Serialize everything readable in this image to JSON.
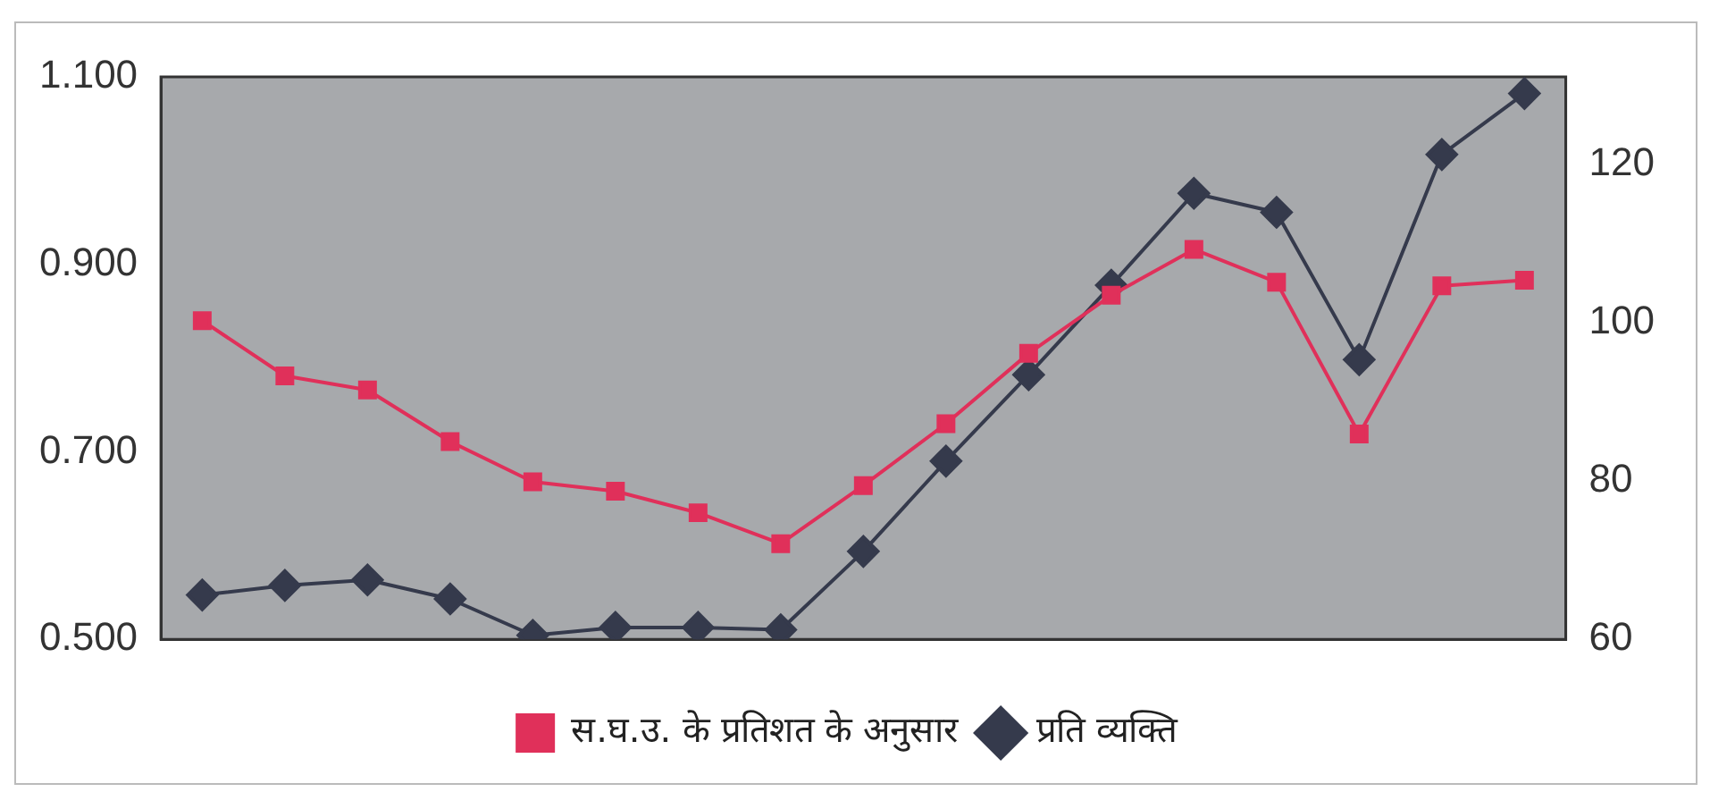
{
  "chart_data": {
    "type": "line",
    "categories": [
      null,
      null,
      null,
      null,
      null,
      null,
      null,
      null,
      null,
      null,
      null,
      null,
      null,
      null,
      null,
      null,
      null
    ],
    "series": [
      {
        "name": "स.घ.उ. के प्रतिशत के अनुसार",
        "color": "#e0305a",
        "marker": "square",
        "values": [
          0.84,
          0.781,
          0.766,
          0.711,
          0.668,
          0.658,
          0.635,
          0.602,
          0.664,
          0.73,
          0.805,
          0.867,
          0.916,
          0.881,
          0.719,
          0.877,
          0.883
        ]
      },
      {
        "name": "प्रति व्यक्ति",
        "color": "#353a4c",
        "marker": "diamond",
        "axis": "y2",
        "values": [
          65.6,
          66.8,
          67.5,
          65.1,
          60.5,
          61.5,
          61.5,
          61.2,
          71.1,
          82.5,
          93.4,
          104.7,
          116.3,
          113.9,
          95.3,
          121.2,
          128.9
        ]
      }
    ],
    "ylim": [
      0.5,
      1.1
    ],
    "yticks": [
      {
        "value": 0.5,
        "label": "0.500"
      },
      {
        "value": 0.7,
        "label": "0.700"
      },
      {
        "value": 0.9,
        "label": "0.900"
      },
      {
        "value": 1.1,
        "label": "1.100"
      }
    ],
    "y2lim": [
      60,
      131
    ],
    "y2ticks": [
      60,
      80,
      100,
      120
    ],
    "grid": false,
    "legend": "bottom",
    "line_style": "solid"
  }
}
